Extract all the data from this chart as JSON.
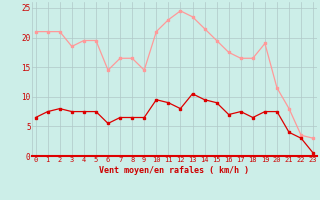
{
  "hours": [
    0,
    1,
    2,
    3,
    4,
    5,
    6,
    7,
    8,
    9,
    10,
    11,
    12,
    13,
    14,
    15,
    16,
    17,
    18,
    19,
    20,
    21,
    22,
    23
  ],
  "wind_avg": [
    6.5,
    7.5,
    8.0,
    7.5,
    7.5,
    7.5,
    5.5,
    6.5,
    6.5,
    6.5,
    9.5,
    9.0,
    8.0,
    10.5,
    9.5,
    9.0,
    7.0,
    7.5,
    6.5,
    7.5,
    7.5,
    4.0,
    3.0,
    0.5
  ],
  "wind_gust": [
    21.0,
    21.0,
    21.0,
    18.5,
    19.5,
    19.5,
    14.5,
    16.5,
    16.5,
    14.5,
    21.0,
    23.0,
    24.5,
    23.5,
    21.5,
    19.5,
    17.5,
    16.5,
    16.5,
    19.0,
    11.5,
    8.0,
    3.5,
    3.0
  ],
  "avg_color": "#dd0000",
  "gust_color": "#ff9999",
  "bg_color": "#cceee8",
  "grid_color": "#b0c8c8",
  "xlabel": "Vent moyen/en rafales ( km/h )",
  "xlabel_color": "#cc0000",
  "tick_color": "#cc0000",
  "ylim": [
    0,
    26
  ],
  "yticks": [
    0,
    5,
    10,
    15,
    20,
    25
  ],
  "marker_size": 2.0,
  "linewidth": 0.9
}
